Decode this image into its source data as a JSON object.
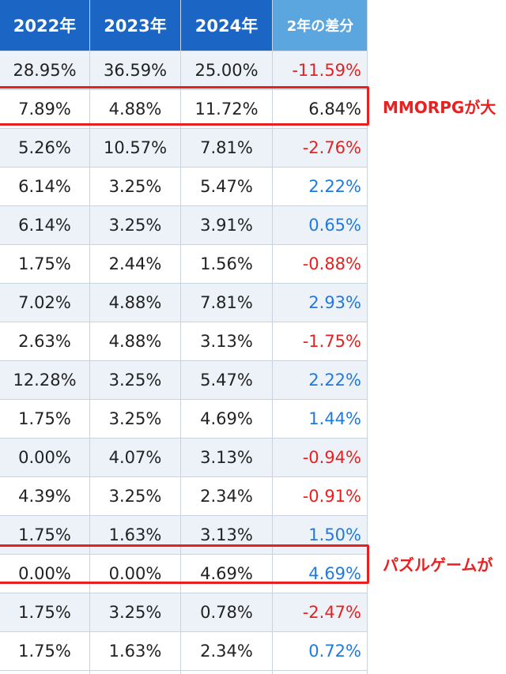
{
  "table": {
    "headers": [
      "2022年",
      "2023年",
      "2024年",
      "2年の差分"
    ],
    "rows": [
      {
        "v2022": "28.95%",
        "v2023": "36.59%",
        "v2024": "25.00%",
        "diff": "-11.59%",
        "sign": "neg"
      },
      {
        "v2022": "7.89%",
        "v2023": "4.88%",
        "v2024": "11.72%",
        "diff": "6.84%",
        "sign": "plain"
      },
      {
        "v2022": "5.26%",
        "v2023": "10.57%",
        "v2024": "7.81%",
        "diff": "-2.76%",
        "sign": "neg"
      },
      {
        "v2022": "6.14%",
        "v2023": "3.25%",
        "v2024": "5.47%",
        "diff": "2.22%",
        "sign": "pos"
      },
      {
        "v2022": "6.14%",
        "v2023": "3.25%",
        "v2024": "3.91%",
        "diff": "0.65%",
        "sign": "pos"
      },
      {
        "v2022": "1.75%",
        "v2023": "2.44%",
        "v2024": "1.56%",
        "diff": "-0.88%",
        "sign": "neg"
      },
      {
        "v2022": "7.02%",
        "v2023": "4.88%",
        "v2024": "7.81%",
        "diff": "2.93%",
        "sign": "pos"
      },
      {
        "v2022": "2.63%",
        "v2023": "4.88%",
        "v2024": "3.13%",
        "diff": "-1.75%",
        "sign": "neg"
      },
      {
        "v2022": "12.28%",
        "v2023": "3.25%",
        "v2024": "5.47%",
        "diff": "2.22%",
        "sign": "pos"
      },
      {
        "v2022": "1.75%",
        "v2023": "3.25%",
        "v2024": "4.69%",
        "diff": "1.44%",
        "sign": "pos"
      },
      {
        "v2022": "0.00%",
        "v2023": "4.07%",
        "v2024": "3.13%",
        "diff": "-0.94%",
        "sign": "neg"
      },
      {
        "v2022": "4.39%",
        "v2023": "3.25%",
        "v2024": "2.34%",
        "diff": "-0.91%",
        "sign": "neg"
      },
      {
        "v2022": "1.75%",
        "v2023": "1.63%",
        "v2024": "3.13%",
        "diff": "1.50%",
        "sign": "pos"
      },
      {
        "v2022": "0.00%",
        "v2023": "0.00%",
        "v2024": "4.69%",
        "diff": "4.69%",
        "sign": "pos"
      },
      {
        "v2022": "1.75%",
        "v2023": "3.25%",
        "v2024": "0.78%",
        "diff": "-2.47%",
        "sign": "neg"
      },
      {
        "v2022": "1.75%",
        "v2023": "1.63%",
        "v2024": "2.34%",
        "diff": "0.72%",
        "sign": "pos"
      }
    ]
  },
  "annotations": {
    "mmorpg": "MMORPGが大",
    "puzzle": "パズルゲームが"
  },
  "colors": {
    "header_year": "#1b65c4",
    "header_diff": "#5ca6e0",
    "negative": "#e8201f",
    "positive": "#1f7ae0",
    "highlight": "#e8201f"
  }
}
